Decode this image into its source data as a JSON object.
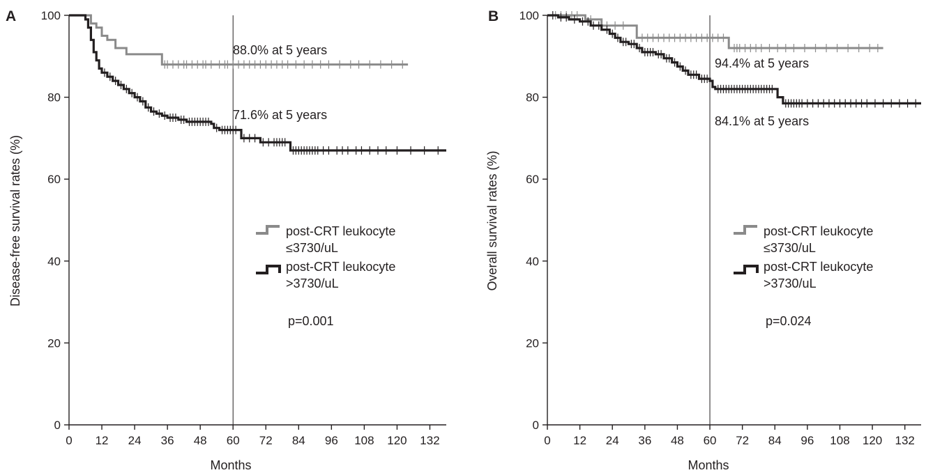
{
  "chart_data": [
    {
      "panel": "A",
      "type": "line",
      "step": true,
      "ylabel": "Disease-free survival rates (%)",
      "xlabel": "Months",
      "xlim": [
        0,
        138
      ],
      "ylim": [
        0,
        100
      ],
      "xticks": [
        0,
        12,
        24,
        36,
        48,
        60,
        72,
        84,
        96,
        108,
        120,
        132
      ],
      "yticks": [
        0,
        20,
        40,
        60,
        80,
        100
      ],
      "reference_x": 60,
      "p_value": "p=0.001",
      "series": [
        {
          "legend_line1": "post-CRT leukocyte",
          "legend_line2": "≤3730/uL",
          "color": "#8a8a8a",
          "annotation": "88.0% at 5 years",
          "points": [
            [
              0,
              100
            ],
            [
              6,
              100
            ],
            [
              8,
              98
            ],
            [
              10,
              97
            ],
            [
              12,
              95
            ],
            [
              14,
              94
            ],
            [
              17,
              92
            ],
            [
              20,
              92
            ],
            [
              21,
              90.5
            ],
            [
              33,
              90.5
            ],
            [
              34,
              88
            ],
            [
              124,
              88
            ]
          ],
          "censor": [
            35,
            36,
            38,
            40,
            42,
            43,
            45,
            47,
            49,
            50,
            52,
            55,
            57,
            58,
            60,
            62,
            64,
            66,
            68,
            70,
            72,
            74,
            76,
            78,
            80,
            83,
            86,
            89,
            92,
            95,
            99,
            103,
            106,
            110,
            114,
            118,
            122
          ]
        },
        {
          "legend_line1": "post-CRT leukocyte",
          "legend_line2": ">3730/uL",
          "color": "#231f20",
          "annotation": "71.6% at 5 years",
          "points": [
            [
              0,
              100
            ],
            [
              4,
              100
            ],
            [
              6,
              99
            ],
            [
              7,
              97
            ],
            [
              8,
              94
            ],
            [
              9,
              91
            ],
            [
              10,
              89
            ],
            [
              11,
              87
            ],
            [
              12,
              86
            ],
            [
              14,
              85
            ],
            [
              16,
              84
            ],
            [
              18,
              83
            ],
            [
              20,
              82
            ],
            [
              22,
              81
            ],
            [
              24,
              80
            ],
            [
              26,
              79
            ],
            [
              28,
              77.5
            ],
            [
              30,
              76.5
            ],
            [
              32,
              76
            ],
            [
              34,
              75.5
            ],
            [
              36,
              75
            ],
            [
              40,
              74.5
            ],
            [
              43,
              74
            ],
            [
              52,
              73.5
            ],
            [
              53,
              72.5
            ],
            [
              55,
              72
            ],
            [
              62,
              72
            ],
            [
              63,
              70
            ],
            [
              69,
              70
            ],
            [
              70,
              69
            ],
            [
              80,
              69
            ],
            [
              81,
              67
            ],
            [
              138,
              67
            ]
          ],
          "censor": [
            13,
            15,
            17,
            19,
            21,
            23,
            25,
            27,
            29,
            31,
            33,
            35,
            37,
            38,
            39,
            41,
            42,
            44,
            45,
            46,
            47,
            48,
            49,
            50,
            51,
            54,
            56,
            57,
            58,
            59,
            60,
            61,
            64,
            66,
            68,
            71,
            73,
            75,
            76,
            77,
            78,
            79,
            82,
            83,
            84,
            85,
            86,
            87,
            88,
            89,
            90,
            91,
            93,
            95,
            98,
            100,
            102,
            105,
            107,
            110,
            113,
            116,
            120,
            125,
            130,
            135
          ]
        }
      ]
    },
    {
      "panel": "B",
      "type": "line",
      "step": true,
      "ylabel": "Overall survival rates (%)",
      "xlabel": "Months",
      "xlim": [
        0,
        138
      ],
      "ylim": [
        0,
        100
      ],
      "xticks": [
        0,
        12,
        24,
        36,
        48,
        60,
        72,
        84,
        96,
        108,
        120,
        132
      ],
      "yticks": [
        0,
        20,
        40,
        60,
        80,
        100
      ],
      "reference_x": 60,
      "p_value": "p=0.024",
      "series": [
        {
          "legend_line1": "post-CRT leukocyte",
          "legend_line2": "≤3730/uL",
          "color": "#8a8a8a",
          "annotation": "94.4% at 5 years",
          "points": [
            [
              0,
              100
            ],
            [
              13,
              100
            ],
            [
              14,
              99
            ],
            [
              18,
              99
            ],
            [
              20,
              97.5
            ],
            [
              32,
              97.5
            ],
            [
              33,
              94.5
            ],
            [
              66,
              94.5
            ],
            [
              67,
              92
            ],
            [
              124,
              92
            ]
          ],
          "censor": [
            3,
            5,
            7,
            9,
            11,
            16,
            22,
            25,
            28,
            35,
            37,
            39,
            41,
            43,
            45,
            47,
            49,
            51,
            53,
            55,
            57,
            59,
            61,
            63,
            65,
            69,
            70,
            71,
            73,
            75,
            77,
            79,
            82,
            85,
            88,
            91,
            95,
            99,
            103,
            107,
            111,
            115,
            119,
            122
          ]
        },
        {
          "legend_line1": "post-CRT leukocyte",
          "legend_line2": ">3730/uL",
          "color": "#231f20",
          "annotation": "84.1% at 5 years",
          "points": [
            [
              0,
              100
            ],
            [
              4,
              99.5
            ],
            [
              8,
              99
            ],
            [
              12,
              98.5
            ],
            [
              16,
              97.5
            ],
            [
              20,
              96.5
            ],
            [
              23,
              95.5
            ],
            [
              25,
              94.5
            ],
            [
              27,
              93.5
            ],
            [
              30,
              93
            ],
            [
              33,
              92
            ],
            [
              35,
              91
            ],
            [
              40,
              90.5
            ],
            [
              43,
              89.5
            ],
            [
              46,
              88.5
            ],
            [
              48,
              87.5
            ],
            [
              50,
              86.5
            ],
            [
              52,
              85.5
            ],
            [
              56,
              84.5
            ],
            [
              60,
              84
            ],
            [
              61,
              82.5
            ],
            [
              62,
              82
            ],
            [
              84,
              82
            ],
            [
              85,
              80
            ],
            [
              87,
              78.5
            ],
            [
              138,
              78.5
            ]
          ],
          "censor": [
            2,
            5,
            7,
            10,
            13,
            15,
            17,
            19,
            22,
            24,
            26,
            28,
            29,
            31,
            32,
            34,
            36,
            37,
            38,
            39,
            41,
            42,
            44,
            45,
            47,
            49,
            51,
            53,
            54,
            55,
            57,
            58,
            59,
            63,
            64,
            65,
            66,
            67,
            68,
            69,
            70,
            71,
            72,
            73,
            74,
            75,
            76,
            77,
            78,
            79,
            80,
            81,
            82,
            83,
            88,
            89,
            90,
            91,
            92,
            93,
            94,
            96,
            98,
            100,
            102,
            104,
            106,
            108,
            110,
            112,
            114,
            116,
            118,
            121,
            124,
            127,
            130,
            133,
            136
          ]
        }
      ]
    }
  ]
}
